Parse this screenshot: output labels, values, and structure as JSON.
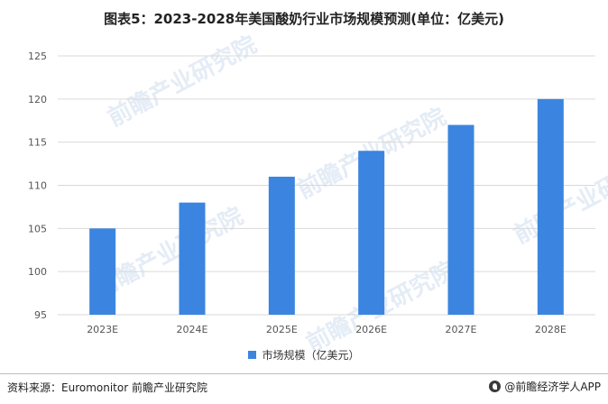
{
  "title": "图表5：2023-2028年美国酸奶行业市场规模预测(单位：亿美元)",
  "source": "资料来源：Euromonitor 前瞻产业研究院",
  "brand": "@前瞻经济学人APP",
  "watermark_text": "前瞻产业研究院",
  "colors": {
    "bar": "#3b85e0",
    "grid": "#d9d9d9",
    "axis_text": "#555555"
  },
  "chart_data": {
    "type": "bar",
    "categories": [
      "2023E",
      "2024E",
      "2025E",
      "2026E",
      "2027E",
      "2028E"
    ],
    "series": [
      {
        "name": "市场规模（亿美元）",
        "values": [
          105,
          108,
          111,
          114,
          117,
          120
        ]
      }
    ],
    "title": "图表5：2023-2028年美国酸奶行业市场规模预测(单位：亿美元)",
    "xlabel": "",
    "ylabel": "",
    "ylim": [
      95,
      125
    ],
    "yticks": [
      95,
      100,
      105,
      110,
      115,
      120,
      125
    ],
    "grid": true,
    "legend_position": "bottom"
  }
}
